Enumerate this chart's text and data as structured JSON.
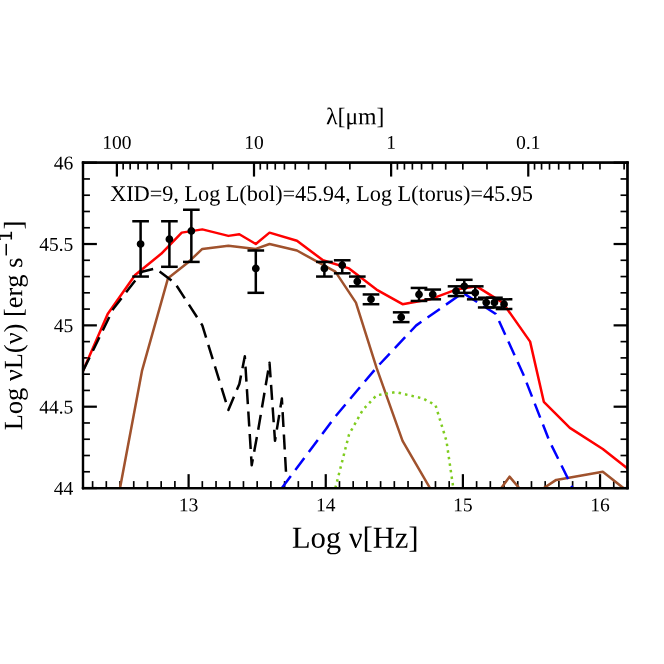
{
  "chart_data": {
    "type": "line",
    "xlabel": "Log ν[Hz]",
    "ylabel": "Log νL(ν) [erg s$^{−1}$]",
    "x2label": "λ[μm]",
    "annotations": [
      "XID=9, Log L(bol)=45.94, Log L(torus)=45.95"
    ],
    "xlim": [
      12.23,
      16.2
    ],
    "xticks": [
      13,
      14,
      15,
      16
    ],
    "ylim": [
      44,
      46
    ],
    "yticks": [
      44,
      {
        "value": 44.5,
        "label": "44.5"
      },
      45,
      {
        "value": 45.5,
        "label": "45.5"
      },
      46
    ],
    "x2lim": [
      176.6,
      0.0189
    ],
    "x2ticks": [
      100,
      10,
      1,
      0.1
    ],
    "log": "x2",
    "grid": false,
    "legend": false,
    "series": [
      {
        "color": "#ff0000",
        "line_style": "solid",
        "x": [
          12.23,
          12.41,
          12.61,
          12.8,
          12.95,
          13.1,
          13.29,
          13.37,
          13.49,
          13.59,
          13.79,
          13.98,
          14.17,
          14.37,
          14.56,
          14.76,
          14.95,
          15.1,
          15.29,
          15.49,
          15.59,
          15.78,
          16.02,
          16.2
        ],
        "values": [
          44.72,
          45.07,
          45.31,
          45.44,
          45.57,
          45.59,
          45.55,
          45.56,
          45.5,
          45.57,
          45.52,
          45.4,
          45.35,
          45.22,
          45.13,
          45.16,
          45.22,
          45.24,
          45.14,
          44.9,
          44.53,
          44.37,
          44.24,
          44.12
        ]
      },
      {
        "color": "#a0522d",
        "line_style": "solid",
        "x": [
          12.5,
          12.66,
          12.85,
          13.0,
          13.1,
          13.29,
          13.49,
          13.59,
          13.79,
          14.07,
          14.22,
          14.37,
          14.56,
          14.76,
          15.0,
          15.28,
          15.34,
          15.41,
          15.5,
          15.59,
          15.68,
          16.02,
          16.17
        ],
        "values": [
          44.0,
          44.72,
          45.29,
          45.39,
          45.47,
          45.49,
          45.47,
          45.5,
          45.46,
          45.33,
          45.14,
          44.74,
          44.29,
          44.0,
          null,
          44.0,
          44.07,
          44.0,
          null,
          44.0,
          44.05,
          44.1,
          44.0
        ]
      },
      {
        "color": "#000000",
        "line_style": "dashed",
        "x": [
          12.23,
          12.45,
          12.66,
          12.76,
          12.9,
          13.1,
          13.29,
          13.37,
          13.41,
          13.46,
          13.51,
          13.59,
          13.63,
          13.68,
          13.71
        ],
        "values": [
          44.72,
          45.1,
          45.33,
          45.35,
          45.26,
          45.0,
          44.48,
          44.64,
          44.81,
          44.14,
          44.37,
          44.77,
          44.29,
          44.55,
          44.1
        ]
      },
      {
        "color": "#0000ff",
        "line_style": "dashed",
        "x": [
          13.68,
          14.07,
          14.37,
          14.66,
          15.0,
          15.24,
          15.44,
          15.63,
          15.8
        ],
        "values": [
          44.0,
          44.44,
          44.74,
          45.0,
          45.2,
          45.07,
          44.7,
          44.29,
          44.0
        ]
      },
      {
        "color": "#7fcc1f",
        "line_style": "dotted",
        "x": [
          14.07,
          14.17,
          14.27,
          14.37,
          14.51,
          14.71,
          14.8,
          14.88,
          14.93
        ],
        "values": [
          44.0,
          44.33,
          44.48,
          44.57,
          44.59,
          44.55,
          44.51,
          44.29,
          44.0
        ]
      },
      {
        "type": "scatter",
        "color": "#000000",
        "marker": "circle",
        "x": [
          12.65,
          12.86,
          13.02,
          13.49,
          13.99,
          14.12,
          14.23,
          14.33,
          14.55,
          14.68,
          14.78,
          14.95,
          15.01,
          15.09,
          15.17,
          15.23,
          15.3
        ],
        "values": [
          45.5,
          45.53,
          45.58,
          45.35,
          45.35,
          45.37,
          45.27,
          45.16,
          45.05,
          45.19,
          45.19,
          45.21,
          45.24,
          45.2,
          45.14,
          45.14,
          45.13
        ],
        "errors": [
          [
            45.3,
            45.64
          ],
          [
            45.36,
            45.64
          ],
          [
            45.39,
            45.71
          ],
          [
            45.2,
            45.46
          ],
          [
            45.3,
            45.39
          ],
          [
            45.32,
            45.4
          ],
          0.03,
          0.03,
          0.03,
          0.04,
          0.03,
          0.03,
          0.04,
          0.04,
          0.03,
          0.03,
          0.03
        ]
      }
    ]
  }
}
